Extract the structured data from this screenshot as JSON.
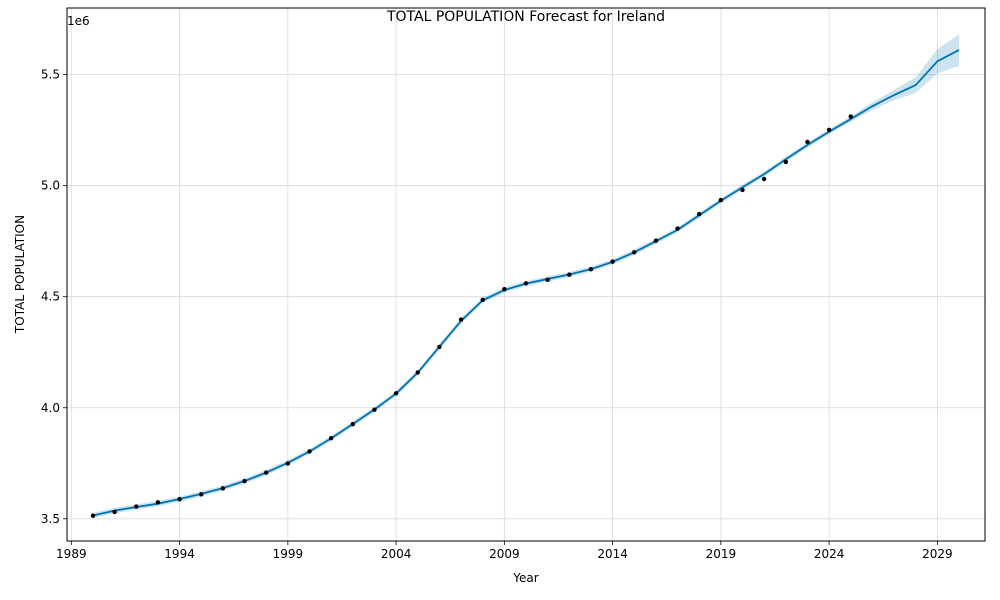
{
  "chart_data": {
    "type": "line",
    "title": "TOTAL POPULATION Forecast for Ireland",
    "xlabel": "Year",
    "ylabel": "TOTAL POPULATION",
    "y_offset_label": "1e6",
    "y_multiplier": 1000000,
    "xlim": [
      1988.8,
      2031.2
    ],
    "ylim": [
      3.4,
      5.8
    ],
    "x_ticks": [
      1989,
      1994,
      1999,
      2004,
      2009,
      2014,
      2019,
      2024,
      2029
    ],
    "y_ticks": [
      3.5,
      4.0,
      4.5,
      5.0,
      5.5
    ],
    "y_tick_labels": [
      "3.5",
      "4.0",
      "4.5",
      "5.0",
      "5.5"
    ],
    "grid": true,
    "colors": {
      "forecast_line": "#0072B2",
      "interval_fill": "#0072B2",
      "observed_points": "#000000",
      "grid": "#d9d9d9"
    },
    "series": [
      {
        "role": "observed",
        "x": [
          1990,
          1991,
          1992,
          1993,
          1994,
          1995,
          1996,
          1997,
          1998,
          1999,
          2000,
          2001,
          2002,
          2003,
          2004,
          2005,
          2006,
          2007,
          2008,
          2009,
          2010,
          2011,
          2012,
          2013,
          2014,
          2015,
          2016,
          2017,
          2018,
          2019,
          2020,
          2021,
          2022,
          2023,
          2024,
          2025
        ],
        "y": [
          3.514,
          3.531,
          3.555,
          3.574,
          3.588,
          3.61,
          3.637,
          3.67,
          3.708,
          3.749,
          3.803,
          3.863,
          3.926,
          3.991,
          4.065,
          4.159,
          4.274,
          4.397,
          4.486,
          4.534,
          4.56,
          4.576,
          4.599,
          4.624,
          4.658,
          4.7,
          4.752,
          4.807,
          4.872,
          4.935,
          4.981,
          5.03,
          5.107,
          5.197,
          5.251,
          5.311
        ]
      },
      {
        "role": "forecast",
        "x": [
          1990,
          1991,
          1992,
          1993,
          1994,
          1995,
          1996,
          1997,
          1998,
          1999,
          2000,
          2001,
          2002,
          2003,
          2004,
          2005,
          2006,
          2007,
          2008,
          2009,
          2010,
          2011,
          2012,
          2013,
          2014,
          2015,
          2016,
          2017,
          2018,
          2019,
          2020,
          2021,
          2022,
          2023,
          2024,
          2025,
          2026,
          2027,
          2028,
          2029,
          2030
        ],
        "y": [
          3.515,
          3.537,
          3.553,
          3.568,
          3.589,
          3.612,
          3.638,
          3.67,
          3.708,
          3.752,
          3.803,
          3.862,
          3.927,
          3.992,
          4.064,
          4.158,
          4.275,
          4.391,
          4.484,
          4.53,
          4.559,
          4.58,
          4.6,
          4.624,
          4.657,
          4.7,
          4.75,
          4.801,
          4.867,
          4.932,
          4.993,
          5.052,
          5.119,
          5.183,
          5.243,
          5.3,
          5.358,
          5.408,
          5.453,
          5.56,
          5.611
        ],
        "lower": [
          3.503,
          3.525,
          3.541,
          3.556,
          3.577,
          3.6,
          3.626,
          3.658,
          3.696,
          3.74,
          3.791,
          3.85,
          3.915,
          3.98,
          4.052,
          4.146,
          4.263,
          4.379,
          4.472,
          4.518,
          4.547,
          4.568,
          4.588,
          4.612,
          4.645,
          4.688,
          4.738,
          4.789,
          4.855,
          4.92,
          4.981,
          5.04,
          5.107,
          5.171,
          5.231,
          5.288,
          5.341,
          5.385,
          5.418,
          5.505,
          5.54
        ],
        "upper": [
          3.527,
          3.549,
          3.565,
          3.58,
          3.601,
          3.624,
          3.65,
          3.682,
          3.72,
          3.764,
          3.815,
          3.874,
          3.939,
          4.004,
          4.076,
          4.17,
          4.287,
          4.403,
          4.496,
          4.542,
          4.571,
          4.592,
          4.612,
          4.636,
          4.669,
          4.712,
          4.762,
          4.813,
          4.879,
          4.944,
          5.005,
          5.064,
          5.131,
          5.195,
          5.255,
          5.312,
          5.375,
          5.431,
          5.488,
          5.615,
          5.682
        ]
      }
    ]
  }
}
